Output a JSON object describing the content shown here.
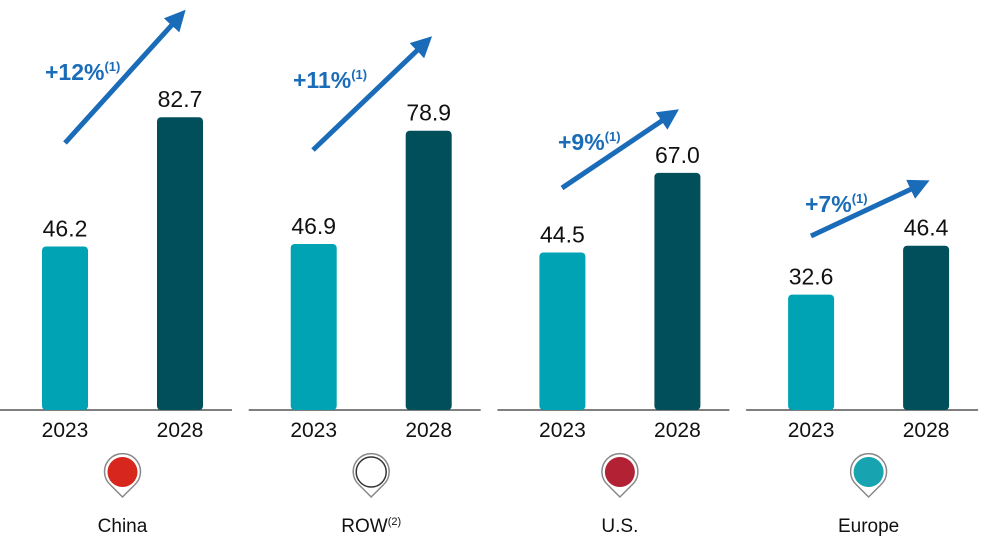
{
  "chart_data": [
    {
      "type": "bar",
      "label": "China",
      "annotation": "+12%",
      "annotation_note": "(1)",
      "categories": [
        "2023",
        "2028"
      ],
      "values": [
        46.2,
        82.7
      ],
      "value_labels": [
        "46.2",
        "82.7"
      ],
      "colors": [
        "#00a3b4",
        "#004f5b"
      ]
    },
    {
      "type": "bar",
      "label": "ROW",
      "label_note": "(2)",
      "annotation": "+11%",
      "annotation_note": "(1)",
      "categories": [
        "2023",
        "2028"
      ],
      "values": [
        46.9,
        78.9
      ],
      "value_labels": [
        "46.9",
        "78.9"
      ],
      "colors": [
        "#00a3b4",
        "#004f5b"
      ]
    },
    {
      "type": "bar",
      "label": "U.S.",
      "annotation": "+9%",
      "annotation_note": "(1)",
      "categories": [
        "2023",
        "2028"
      ],
      "values": [
        44.5,
        67.0
      ],
      "value_labels": [
        "44.5",
        "67.0"
      ],
      "colors": [
        "#00a3b4",
        "#004f5b"
      ]
    },
    {
      "type": "bar",
      "label": "Europe",
      "annotation": "+7%",
      "annotation_note": "(1)",
      "categories": [
        "2023",
        "2028"
      ],
      "values": [
        32.6,
        46.4
      ],
      "value_labels": [
        "32.6",
        "46.4"
      ],
      "colors": [
        "#00a3b4",
        "#004f5b"
      ]
    }
  ]
}
